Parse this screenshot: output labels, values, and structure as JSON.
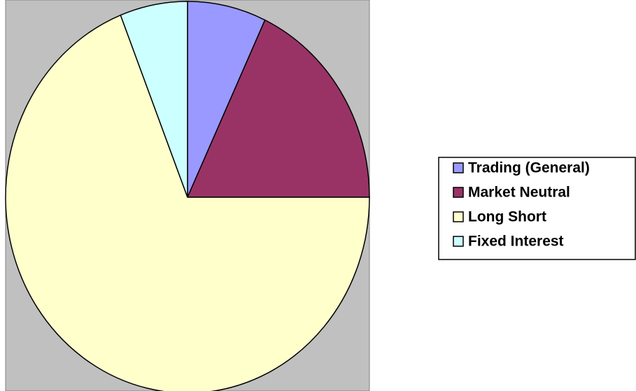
{
  "chart_data": {
    "type": "pie",
    "categories": [
      "Trading (General)",
      "Market Neutral",
      "Long Short",
      "Fixed Interest"
    ],
    "values": [
      7,
      18,
      69,
      6
    ],
    "colors": [
      "#9999ff",
      "#993366",
      "#ffffcc",
      "#ccffff"
    ],
    "legend": "right"
  }
}
